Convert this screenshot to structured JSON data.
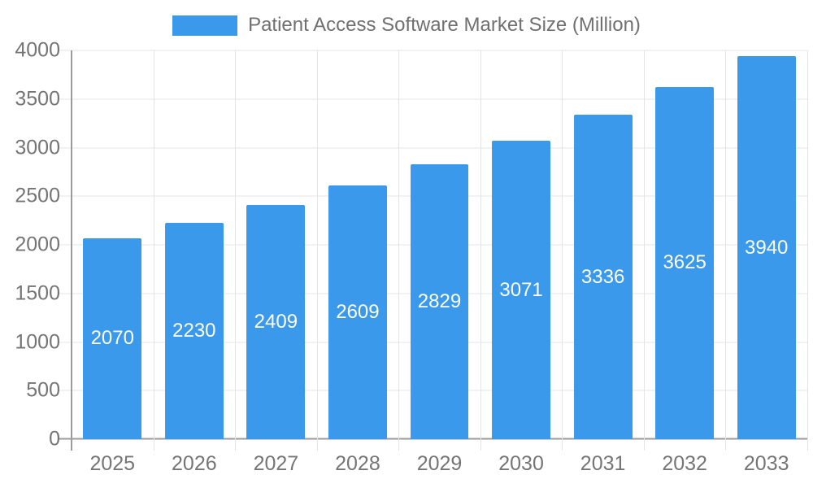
{
  "chart_data": {
    "type": "bar",
    "title": "Patient Access Software Market Size (Million)",
    "categories": [
      "2025",
      "2026",
      "2027",
      "2028",
      "2029",
      "2030",
      "2031",
      "2032",
      "2033"
    ],
    "values": [
      2070,
      2230,
      2409,
      2609,
      2829,
      3071,
      3336,
      3625,
      3940
    ],
    "xlabel": "",
    "ylabel": "",
    "ylim": [
      0,
      4000
    ],
    "yticks": [
      0,
      500,
      1000,
      1500,
      2000,
      2500,
      3000,
      3500,
      4000
    ],
    "grid": true,
    "legend_position": "top",
    "value_label_position": "inside-center"
  },
  "colors": {
    "bar": "#3b99ec",
    "bar_label": "#ffffff",
    "axis_line": "#9b9b9b",
    "grid_line": "#e4e4e4",
    "tick_text": "#757575",
    "legend_text": "#707070",
    "background": "#ffffff"
  }
}
